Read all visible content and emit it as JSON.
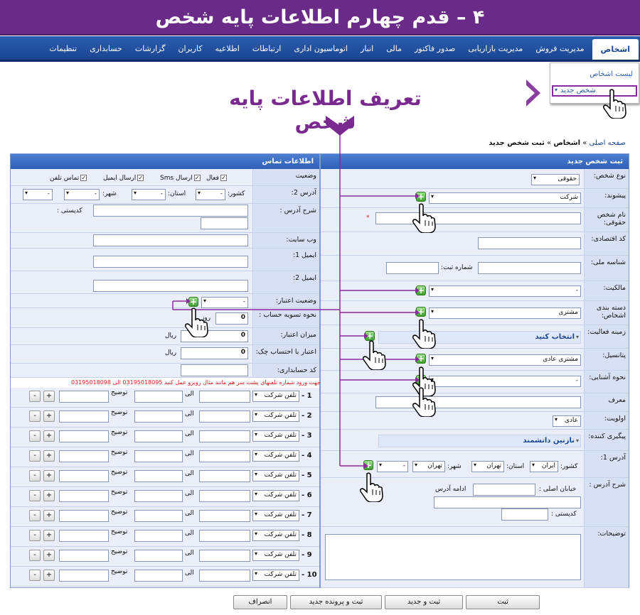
{
  "banner": {
    "title": "۴ – قدم چهارم اطلاعات پایه شخص"
  },
  "nav": {
    "items": [
      "اشخاص",
      "مدیریت فروش",
      "مدیریت بازاریابی",
      "صدور فاکتور",
      "مالی",
      "انبار",
      "اتوماسیون اداری",
      "ارتباطات",
      "اطلاعیه",
      "کاربران",
      "گزارشات",
      "حسابداری",
      "تنظیمات"
    ]
  },
  "dropmenu": {
    "list": "لیست اشخاص",
    "new": "شخص جدید"
  },
  "hint": {
    "text": "تعریف اطلاعات پایه شخص"
  },
  "breadcrumb": {
    "home": "صفحه اصلی",
    "sep": "»",
    "people": "اشخاص",
    "current": "ثبت شخص جدید"
  },
  "right_panel": {
    "title": "ثبت شخص جدید",
    "person_type": {
      "label": "نوع شخص:",
      "value": "حقوقی"
    },
    "prefix": {
      "label": "پیشوند:",
      "value": "شرکت"
    },
    "legal_name": {
      "label": "نام شخص حقوقی:",
      "required": "*"
    },
    "economic_code": {
      "label": "کد اقتصادی:"
    },
    "national_id": {
      "label": "شناسه ملی:",
      "reg_label": "شماره ثبت:"
    },
    "ownership": {
      "label": "مالکیت:",
      "value": "-"
    },
    "category": {
      "label": "دسته بندی اشخاص:",
      "value": "مشتری"
    },
    "activity": {
      "label": "زمینه فعالیت:",
      "value": "انتخاب کنید"
    },
    "potential": {
      "label": "پتانسیل:",
      "value": "مشتری عادی"
    },
    "acquaint": {
      "label": "نحوه آشنایی:",
      "value": "-"
    },
    "referrer": {
      "label": "معرف"
    },
    "priority": {
      "label": "اولویت:",
      "value": "عادی"
    },
    "follower": {
      "label": "پیگیری کننده:",
      "value": "نازنین دانشمند"
    },
    "address1": {
      "label": "آدرس 1:",
      "country_label": "کشور:",
      "country": "ایران",
      "province_label": "استان:",
      "province": "تهران",
      "city_label": "شهر:",
      "city": "تهران",
      "district": "-"
    },
    "address_desc": {
      "label": "شرح آدرس :",
      "main_street": "خیابان اصلی :",
      "continue": "ادامه آدرس",
      "postal": "کدپستی :"
    },
    "notes": {
      "label": "توضیحات:"
    }
  },
  "left_panel": {
    "title": "اطلاعات تماس",
    "status": {
      "label": "وضعیت",
      "active": "فعال",
      "sms": "ارسال Sms",
      "email": "ارسال ایمیل",
      "phone": "تماس تلفن"
    },
    "address2": {
      "label": "آدرس 2:",
      "country_label": "کشور:",
      "country": "-",
      "province_label": "استان:",
      "province": "-",
      "city_label": "شهر:",
      "city": "-",
      "district": "-"
    },
    "address_desc": {
      "label": "شرح آدرس :",
      "postal": "کدپستی :"
    },
    "website": {
      "label": "وب سایت:"
    },
    "email1": {
      "label": "ایمیل 1:"
    },
    "email2": {
      "label": "ایمیل 2:"
    },
    "credit_status": {
      "label": "وضعیت اعتبار:",
      "value": "-"
    },
    "settlement": {
      "label": "نحوه تسویه حساب :",
      "value": "0",
      "unit": "روز"
    },
    "credit_amount": {
      "label": "میزان اعتبار:",
      "value": "0",
      "unit": "ریال"
    },
    "check_credit": {
      "label": "اعتبار با احتساب چک:",
      "value": "0",
      "unit": "ریال"
    },
    "account_code": {
      "label": "کد حسابداری:"
    },
    "phone_note": "جهت ورود شماره تلفنهای پشت سر هم مانند مثال روبرو عمل کنید 03195018095 الی 03195018098",
    "phone_rows": [
      {
        "num": "1 -",
        "type": "تلفن شرکت",
        "to": "الی",
        "desc": "توضیح"
      },
      {
        "num": "2 -",
        "type": "تلفن شرکت",
        "to": "الی",
        "desc": "توضیح"
      },
      {
        "num": "3 -",
        "type": "تلفن شرکت",
        "to": "الی",
        "desc": "توضیح"
      },
      {
        "num": "4 -",
        "type": "تلفن شرکت",
        "to": "الی",
        "desc": "توضیح"
      },
      {
        "num": "5 -",
        "type": "تلفن شرکت",
        "to": "الی",
        "desc": "توضیح"
      },
      {
        "num": "6 -",
        "type": "تلفن شرکت",
        "to": "الی",
        "desc": "توضیح"
      },
      {
        "num": "7 -",
        "type": "تلفن شرکت",
        "to": "الی",
        "desc": "توضیح"
      },
      {
        "num": "8 -",
        "type": "تلفن شرکت",
        "to": "الی",
        "desc": "توضیح"
      },
      {
        "num": "9 -",
        "type": "تلفن شرکت",
        "to": "الی",
        "desc": "توضیح"
      },
      {
        "num": "10 -",
        "type": "تلفن شرکت",
        "to": "الی",
        "desc": "توضیح"
      }
    ],
    "plus": "+",
    "minus": "-"
  },
  "buttons": {
    "save": "ثبت",
    "save_new": "ثبت و جدید",
    "save_file": "ثبت و پرونده جدید",
    "cancel": "انصراف"
  },
  "colors": {
    "accent": "#6a2a87",
    "nav": "#1b4591",
    "header": "#2f60b8",
    "label_bg": "#d8e1f3"
  }
}
